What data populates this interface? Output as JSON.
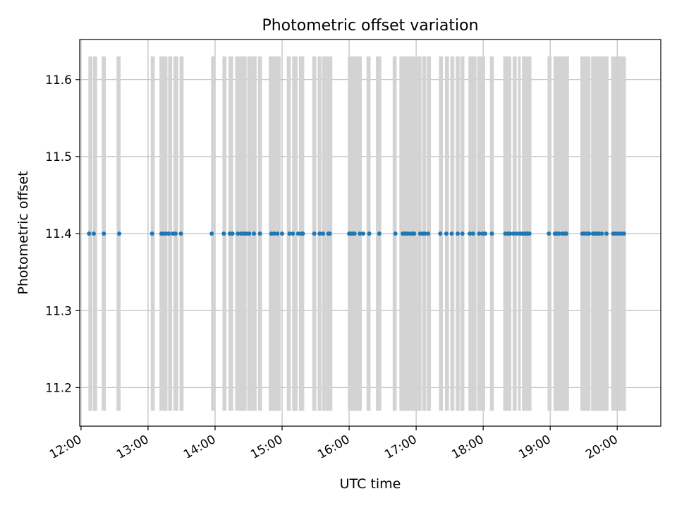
{
  "chart_data": {
    "type": "scatter",
    "title": "Photometric offset variation",
    "xlabel": "UTC time",
    "ylabel": "Photometric offset",
    "xlim_hours": [
      11.98,
      20.65
    ],
    "ylim": [
      11.15,
      11.652
    ],
    "grid": true,
    "x_ticks": [
      {
        "value": 12,
        "label": "12:00"
      },
      {
        "value": 13,
        "label": "13:00"
      },
      {
        "value": 14,
        "label": "14:00"
      },
      {
        "value": 15,
        "label": "15:00"
      },
      {
        "value": 16,
        "label": "16:00"
      },
      {
        "value": 17,
        "label": "17:00"
      },
      {
        "value": 18,
        "label": "18:00"
      },
      {
        "value": 19,
        "label": "19:00"
      },
      {
        "value": 20,
        "label": "20:00"
      }
    ],
    "y_ticks": [
      {
        "value": 11.2,
        "label": "11.2"
      },
      {
        "value": 11.3,
        "label": "11.3"
      },
      {
        "value": 11.4,
        "label": "11.4"
      },
      {
        "value": 11.5,
        "label": "11.5"
      },
      {
        "value": 11.6,
        "label": "11.6"
      }
    ],
    "band_y_range": [
      11.17,
      11.63
    ],
    "band_color": "#d3d3d3",
    "point_color": "#1f77b4",
    "series": [
      {
        "name": "Photometric offset",
        "y_value": 11.4,
        "x_hours": [
          12.12,
          12.19,
          12.34,
          12.57,
          13.06,
          13.2,
          13.23,
          13.27,
          13.31,
          13.37,
          13.41,
          13.49,
          13.95,
          14.13,
          14.22,
          14.26,
          14.34,
          14.39,
          14.43,
          14.47,
          14.51,
          14.58,
          14.67,
          14.84,
          14.88,
          14.93,
          15.0,
          15.11,
          15.16,
          15.24,
          15.29,
          15.31,
          15.48,
          15.56,
          15.61,
          15.69,
          15.71,
          16.0,
          16.02,
          16.05,
          16.08,
          16.16,
          16.21,
          16.3,
          16.45,
          16.69,
          16.8,
          16.83,
          16.86,
          16.9,
          16.94,
          16.97,
          17.06,
          17.1,
          17.13,
          17.18,
          17.36,
          17.45,
          17.53,
          17.62,
          17.69,
          17.8,
          17.85,
          17.94,
          17.99,
          18.03,
          18.13,
          18.33,
          18.37,
          18.4,
          18.45,
          18.5,
          18.55,
          18.58,
          18.62,
          18.64,
          18.66,
          18.69,
          18.98,
          19.07,
          19.1,
          19.13,
          19.18,
          19.22,
          19.24,
          19.48,
          19.51,
          19.55,
          19.58,
          19.64,
          19.67,
          19.71,
          19.73,
          19.77,
          19.84,
          19.94,
          19.98,
          20.02,
          20.06,
          20.1
        ]
      }
    ],
    "bands_hours": [
      [
        12.11,
        12.17
      ],
      [
        12.18,
        12.24
      ],
      [
        12.31,
        12.37
      ],
      [
        12.53,
        12.59
      ],
      [
        13.04,
        13.1
      ],
      [
        13.17,
        13.29
      ],
      [
        13.3,
        13.36
      ],
      [
        13.38,
        13.45
      ],
      [
        13.47,
        13.53
      ],
      [
        13.94,
        14.0
      ],
      [
        14.11,
        14.17
      ],
      [
        14.2,
        14.27
      ],
      [
        14.3,
        14.39
      ],
      [
        14.39,
        14.47
      ],
      [
        14.48,
        14.56
      ],
      [
        14.56,
        14.62
      ],
      [
        14.64,
        14.7
      ],
      [
        14.8,
        14.92
      ],
      [
        14.92,
        14.98
      ],
      [
        15.07,
        15.13
      ],
      [
        15.15,
        15.23
      ],
      [
        15.25,
        15.33
      ],
      [
        15.45,
        15.51
      ],
      [
        15.53,
        15.59
      ],
      [
        15.6,
        15.66
      ],
      [
        15.66,
        15.75
      ],
      [
        15.98,
        16.11
      ],
      [
        16.11,
        16.19
      ],
      [
        16.26,
        16.32
      ],
      [
        16.4,
        16.48
      ],
      [
        16.65,
        16.71
      ],
      [
        16.75,
        16.81
      ],
      [
        16.81,
        17.01
      ],
      [
        17.01,
        17.08
      ],
      [
        17.09,
        17.15
      ],
      [
        17.16,
        17.22
      ],
      [
        17.34,
        17.4
      ],
      [
        17.43,
        17.49
      ],
      [
        17.51,
        17.57
      ],
      [
        17.59,
        17.65
      ],
      [
        17.66,
        17.72
      ],
      [
        17.78,
        17.9
      ],
      [
        17.91,
        18.03
      ],
      [
        18.1,
        18.16
      ],
      [
        18.3,
        18.42
      ],
      [
        18.44,
        18.5
      ],
      [
        18.52,
        18.56
      ],
      [
        18.58,
        18.64
      ],
      [
        18.64,
        18.72
      ],
      [
        18.96,
        19.02
      ],
      [
        19.05,
        19.16
      ],
      [
        19.16,
        19.22
      ],
      [
        19.2,
        19.28
      ],
      [
        19.45,
        19.53
      ],
      [
        19.53,
        19.6
      ],
      [
        19.61,
        19.67
      ],
      [
        19.65,
        19.76
      ],
      [
        19.76,
        19.87
      ],
      [
        19.91,
        20.0
      ],
      [
        20.0,
        20.13
      ]
    ]
  }
}
